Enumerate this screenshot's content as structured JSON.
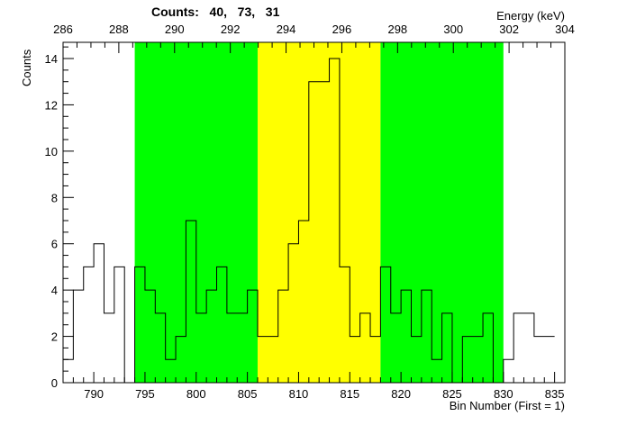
{
  "title": "Counts:   40,   73,   31",
  "chart_data": {
    "type": "histogram",
    "title": "Counts:   40,   73,   31",
    "xlabel": "Bin Number (First = 1)",
    "ylabel": "Counts",
    "x2label": "Energy (keV)",
    "xlim": [
      787,
      836
    ],
    "ylim": [
      0,
      14.7
    ],
    "x2lim": [
      286,
      304
    ],
    "x_ticks": [
      "790",
      "795",
      "800",
      "805",
      "810",
      "815",
      "820",
      "825",
      "830",
      "835"
    ],
    "x2_ticks": [
      "286",
      "288",
      "290",
      "292",
      "294",
      "296",
      "298",
      "300",
      "302",
      "304"
    ],
    "y_ticks": [
      "0",
      "2",
      "4",
      "6",
      "8",
      "10",
      "12",
      "14"
    ],
    "bin_start": 787,
    "bin_width": 1,
    "counts": [
      1,
      4,
      5,
      6,
      3,
      5,
      0,
      5,
      4,
      3,
      1,
      2,
      7,
      3,
      4,
      5,
      3,
      3,
      4,
      2,
      2,
      4,
      6,
      7,
      13,
      13,
      14,
      5,
      2,
      3,
      2,
      5,
      3,
      4,
      2,
      4,
      1,
      3,
      0,
      2,
      2,
      3,
      0,
      1,
      3,
      3,
      2,
      2
    ],
    "regions": [
      {
        "name": "background-left",
        "x0": 794,
        "x1": 806,
        "color": "#00ff00",
        "count": 40
      },
      {
        "name": "peak",
        "x0": 806,
        "x1": 818,
        "color": "#ffff00",
        "count": 73
      },
      {
        "name": "background-right",
        "x0": 818,
        "x1": 830,
        "color": "#00ff00",
        "count": 31
      }
    ],
    "grid": false,
    "line_color": "#000000"
  }
}
